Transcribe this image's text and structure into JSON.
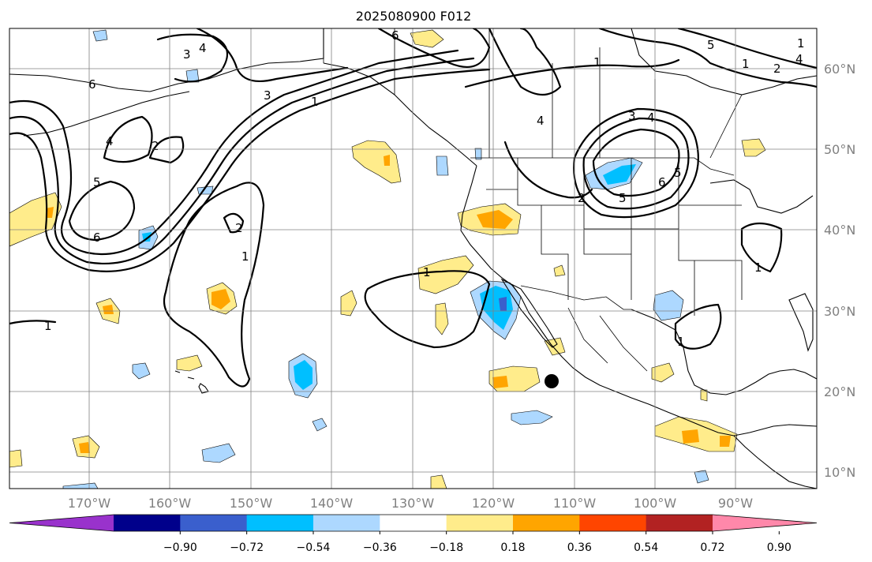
{
  "title": "2025080900 F012",
  "map": {
    "lon_labels": [
      "170°W",
      "160°W",
      "150°W",
      "140°W",
      "130°W",
      "120°W",
      "110°W",
      "100°W",
      "90°W"
    ],
    "lat_labels": [
      "60°N",
      "50°N",
      "40°N",
      "30°N",
      "20°N",
      "10°N"
    ],
    "contour_labels": [
      "6",
      "5",
      "4",
      "1",
      "3",
      "6",
      "1",
      "2",
      "4",
      "3",
      "4",
      "6",
      "5",
      "4",
      "2",
      "5",
      "4",
      "5",
      "6",
      "2",
      "1",
      "1",
      "1",
      "1",
      "1",
      "1",
      "2",
      "3",
      "1"
    ],
    "marker": "storm-center-dot",
    "grid": true
  },
  "colorbar": {
    "ticks": [
      "−0.90",
      "−0.72",
      "−0.54",
      "−0.36",
      "−0.18",
      "0.18",
      "0.36",
      "0.54",
      "0.72",
      "0.90"
    ],
    "colors": [
      "#9932cc",
      "#00008b",
      "#3a5fcd",
      "#00bfff",
      "#add8ff",
      "#ffffff",
      "#ffec8b",
      "#ffa500",
      "#ff4500",
      "#b22222",
      "#ff88aa"
    ],
    "extend": "both"
  }
}
